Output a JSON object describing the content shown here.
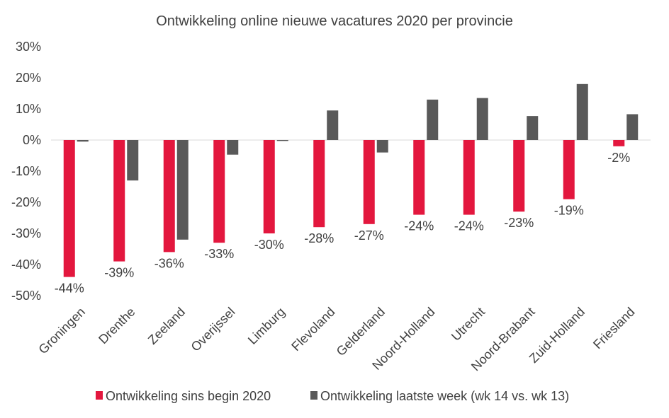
{
  "chart_data": {
    "type": "bar",
    "title": "Ontwikkeling online nieuwe vacatures 2020 per provincie",
    "xlabel": "",
    "ylabel": "",
    "ylim": [
      -50,
      30
    ],
    "yticks": [
      "30%",
      "20%",
      "10%",
      "0%",
      "-10%",
      "-20%",
      "-30%",
      "-40%",
      "-50%"
    ],
    "ytick_values": [
      30,
      20,
      10,
      0,
      -10,
      -20,
      -30,
      -40,
      -50
    ],
    "categories": [
      "Groningen",
      "Drenthe",
      "Zeeland",
      "Overijssel",
      "Limburg",
      "Flevoland",
      "Gelderland",
      "Noord-Holland",
      "Utrecht",
      "Noord-Brabant",
      "Zuid-Holland",
      "Friesland"
    ],
    "series": [
      {
        "name": "Ontwikkeling sins begin 2020",
        "color": "#e3173e",
        "values": [
          -44,
          -39,
          -36,
          -33,
          -30,
          -28,
          -27,
          -24,
          -24,
          -23,
          -19,
          -2
        ],
        "labels": [
          "-44%",
          "-39%",
          "-36%",
          "-33%",
          "-30%",
          "-28%",
          "-27%",
          "-24%",
          "-24%",
          "-23%",
          "-19%",
          "-2%"
        ]
      },
      {
        "name": "Ontwikkeling laatste week (wk 14 vs. wk 13)",
        "color": "#595959",
        "values": [
          -0.5,
          -13,
          -32,
          -4.7,
          -0.3,
          9.5,
          -4,
          13,
          13.5,
          7.7,
          18,
          8.3
        ]
      }
    ],
    "grid": false,
    "legend": "bottom"
  }
}
